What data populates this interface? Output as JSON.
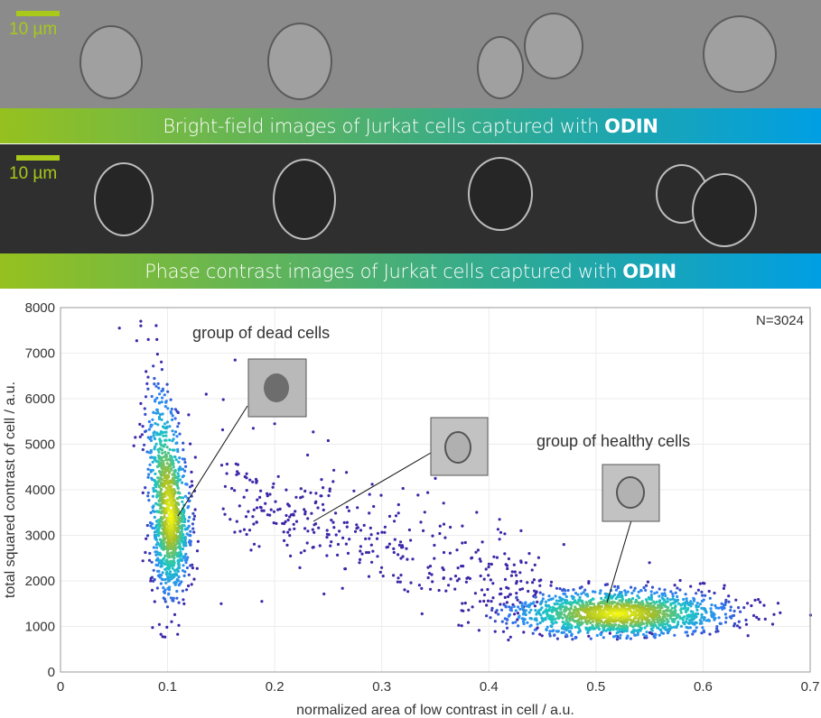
{
  "images": {
    "bright_field": {
      "scale_label": "10 µm",
      "caption_text": "Bright-field images of Jurkat cells captured with",
      "caption_brand": "ODIN"
    },
    "phase_contrast": {
      "scale_label": "10 µm",
      "caption_text": "Phase contrast images of Jurkat cells captured with",
      "caption_brand": "ODIN"
    }
  },
  "chart_data": {
    "type": "scatter",
    "xlabel": "normalized area of low contrast in cell / a.u.",
    "ylabel": "total squared contrast of cell / a.u.",
    "xlim": [
      0,
      0.7
    ],
    "ylim": [
      0,
      8000
    ],
    "xticks": [
      "0",
      "0.1",
      "0.2",
      "0.3",
      "0.4",
      "0.5",
      "0.6",
      "0.7"
    ],
    "yticks": [
      "0",
      "1000",
      "2000",
      "3000",
      "4000",
      "5000",
      "6000",
      "7000",
      "8000"
    ],
    "grid": true,
    "count_label": "N=3024",
    "colormap": [
      "#3e26a8",
      "#2e87f7",
      "#1ac7c2",
      "#a5be2a",
      "#f9fb0e"
    ],
    "annotations": [
      {
        "text": "group of dead cells",
        "x": 0.12,
        "y": 7400,
        "inset": "dead",
        "points_to": [
          0.107,
          3350
        ]
      },
      {
        "text": "",
        "inset": "intermediate",
        "points_to": [
          0.235,
          3300
        ]
      },
      {
        "text": "group of healthy cells",
        "x": 0.43,
        "y": 5000,
        "inset": "healthy",
        "points_to": [
          0.51,
          1500
        ]
      }
    ],
    "clusters": [
      {
        "name": "dead cells",
        "count": 1150,
        "center": [
          0.103,
          3400
        ],
        "spread": [
          0.009,
          850
        ],
        "tail_up": true
      },
      {
        "name": "healthy cells",
        "count": 1500,
        "center": [
          0.52,
          1280
        ],
        "spread": [
          0.05,
          260
        ]
      },
      {
        "name": "intermediate",
        "count": 374,
        "x_range": [
          0.15,
          0.45
        ],
        "y_trend": [
          [
            0.15,
            3900
          ],
          [
            0.45,
            1800
          ]
        ],
        "spread_y": 900
      }
    ],
    "outliers": [
      [
        0.055,
        7550
      ],
      [
        0.075,
        7600
      ],
      [
        0.075,
        7700
      ],
      [
        0.082,
        7300
      ],
      [
        0.09,
        7300
      ],
      [
        0.163,
        6850
      ],
      [
        0.136,
        6100
      ],
      [
        0.152,
        5980
      ],
      [
        0.18,
        5350
      ],
      [
        0.2,
        5450
      ],
      [
        0.236,
        5270
      ],
      [
        0.25,
        5080
      ],
      [
        0.35,
        4250
      ],
      [
        0.41,
        3350
      ],
      [
        0.43,
        3100
      ],
      [
        0.47,
        2800
      ],
      [
        0.55,
        2400
      ],
      [
        0.6,
        1950
      ],
      [
        0.62,
        1900
      ],
      [
        0.65,
        1200
      ],
      [
        0.665,
        1050
      ],
      [
        0.672,
        1300
      ],
      [
        0.15,
        1500
      ],
      [
        0.188,
        1550
      ]
    ]
  }
}
